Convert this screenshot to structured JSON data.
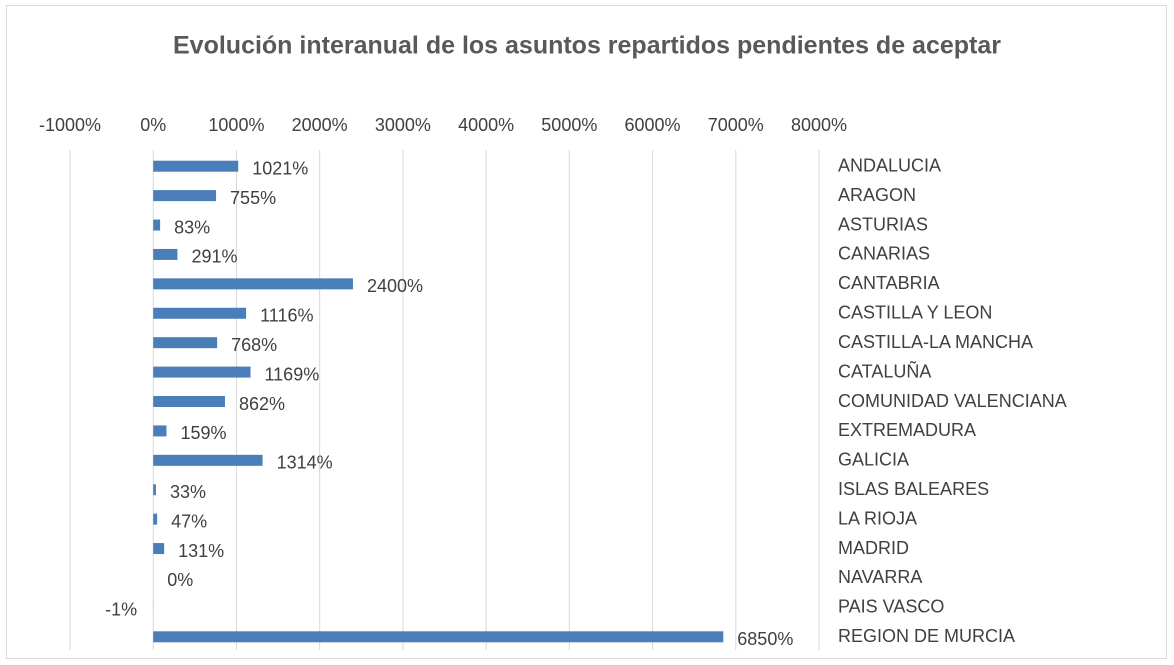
{
  "chart_data": {
    "type": "hbar",
    "title": "Evolución interanual de los asuntos repartidos pendientes de aceptar",
    "categories": [
      "ANDALUCIA",
      "ARAGON",
      "ASTURIAS",
      "CANARIAS",
      "CANTABRIA",
      "CASTILLA Y LEON",
      "CASTILLA-LA MANCHA",
      "CATALUÑA",
      "COMUNIDAD VALENCIANA",
      "EXTREMADURA",
      "GALICIA",
      "ISLAS BALEARES",
      "LA RIOJA",
      "MADRID",
      "NAVARRA",
      "PAIS VASCO",
      "REGION DE MURCIA"
    ],
    "values": [
      1021,
      755,
      83,
      291,
      2400,
      1116,
      768,
      1169,
      862,
      159,
      1314,
      33,
      47,
      131,
      0,
      -1,
      6850
    ],
    "value_labels": [
      "1021%",
      "755%",
      "83%",
      "291%",
      "2400%",
      "1116%",
      "768%",
      "1169%",
      "862%",
      "159%",
      "1314%",
      "33%",
      "47%",
      "131%",
      "0%",
      "-1%",
      "6850%"
    ],
    "color": "#4a7ebb",
    "xlim": [
      -1000,
      8000
    ],
    "xticks": [
      {
        "value": -1000,
        "label": "-1000%"
      },
      {
        "value": 0,
        "label": "0%"
      },
      {
        "value": 1000,
        "label": "1000%"
      },
      {
        "value": 2000,
        "label": "2000%"
      },
      {
        "value": 3000,
        "label": "3000%"
      },
      {
        "value": 4000,
        "label": "4000%"
      },
      {
        "value": 5000,
        "label": "5000%"
      },
      {
        "value": 6000,
        "label": "6000%"
      },
      {
        "value": 7000,
        "label": "7000%"
      },
      {
        "value": 8000,
        "label": "8000%"
      }
    ],
    "grid": true
  }
}
